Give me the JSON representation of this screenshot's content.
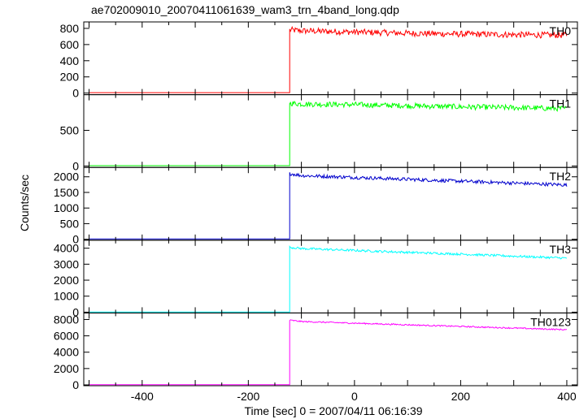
{
  "chart_data": {
    "type": "line",
    "title": "ae702009010_20070411061639_wam3_trn_4band_long.qdp",
    "xlabel": "Time [sec] 0 = 2007/04/11 06:16:39",
    "ylabel": "Counts/sec",
    "xlim": [
      -510,
      420
    ],
    "x_ticks": [
      -400,
      -200,
      0,
      200,
      400
    ],
    "panels": [
      {
        "name": "TH0",
        "color": "#ff0000",
        "ylim": [
          -20,
          880
        ],
        "y_ticks": [
          0,
          200,
          400,
          600,
          800
        ],
        "pre_level": 5,
        "onset_x": -122,
        "points": [
          [
            -120,
            780
          ],
          [
            -100,
            770
          ],
          [
            0,
            755
          ],
          [
            100,
            740
          ],
          [
            200,
            730
          ],
          [
            300,
            722
          ],
          [
            400,
            715
          ]
        ],
        "noise": 38
      },
      {
        "name": "TH1",
        "color": "#00ff00",
        "ylim": [
          -20,
          1000
        ],
        "y_ticks": [
          0,
          500
        ],
        "pre_level": 5,
        "onset_x": -122,
        "points": [
          [
            -120,
            880
          ],
          [
            -100,
            870
          ],
          [
            0,
            860
          ],
          [
            100,
            845
          ],
          [
            200,
            830
          ],
          [
            300,
            818
          ],
          [
            400,
            805
          ]
        ],
        "noise": 38
      },
      {
        "name": "TH2",
        "color": "#0000cc",
        "ylim": [
          -30,
          2300
        ],
        "y_ticks": [
          0,
          500,
          1000,
          1500,
          2000
        ],
        "pre_level": 10,
        "onset_x": -122,
        "points": [
          [
            -120,
            2100
          ],
          [
            -100,
            2040
          ],
          [
            0,
            1980
          ],
          [
            100,
            1920
          ],
          [
            200,
            1860
          ],
          [
            300,
            1800
          ],
          [
            400,
            1740
          ]
        ],
        "noise": 55
      },
      {
        "name": "TH3",
        "color": "#00ffff",
        "ylim": [
          -50,
          4500
        ],
        "y_ticks": [
          0,
          1000,
          2000,
          3000,
          4000
        ],
        "pre_level": 10,
        "onset_x": -122,
        "points": [
          [
            -120,
            4050
          ],
          [
            -100,
            3980
          ],
          [
            0,
            3860
          ],
          [
            100,
            3740
          ],
          [
            200,
            3630
          ],
          [
            300,
            3500
          ],
          [
            400,
            3380
          ]
        ],
        "noise": 70
      },
      {
        "name": "TH0123",
        "color": "#ff00ff",
        "ylim": [
          -100,
          8800
        ],
        "y_ticks": [
          0,
          2000,
          4000,
          6000,
          8000
        ],
        "pre_level": 20,
        "onset_x": -122,
        "points": [
          [
            -120,
            7900
          ],
          [
            -100,
            7750
          ],
          [
            0,
            7550
          ],
          [
            100,
            7350
          ],
          [
            200,
            7150
          ],
          [
            300,
            6950
          ],
          [
            400,
            6750
          ]
        ],
        "noise": 80
      }
    ]
  }
}
